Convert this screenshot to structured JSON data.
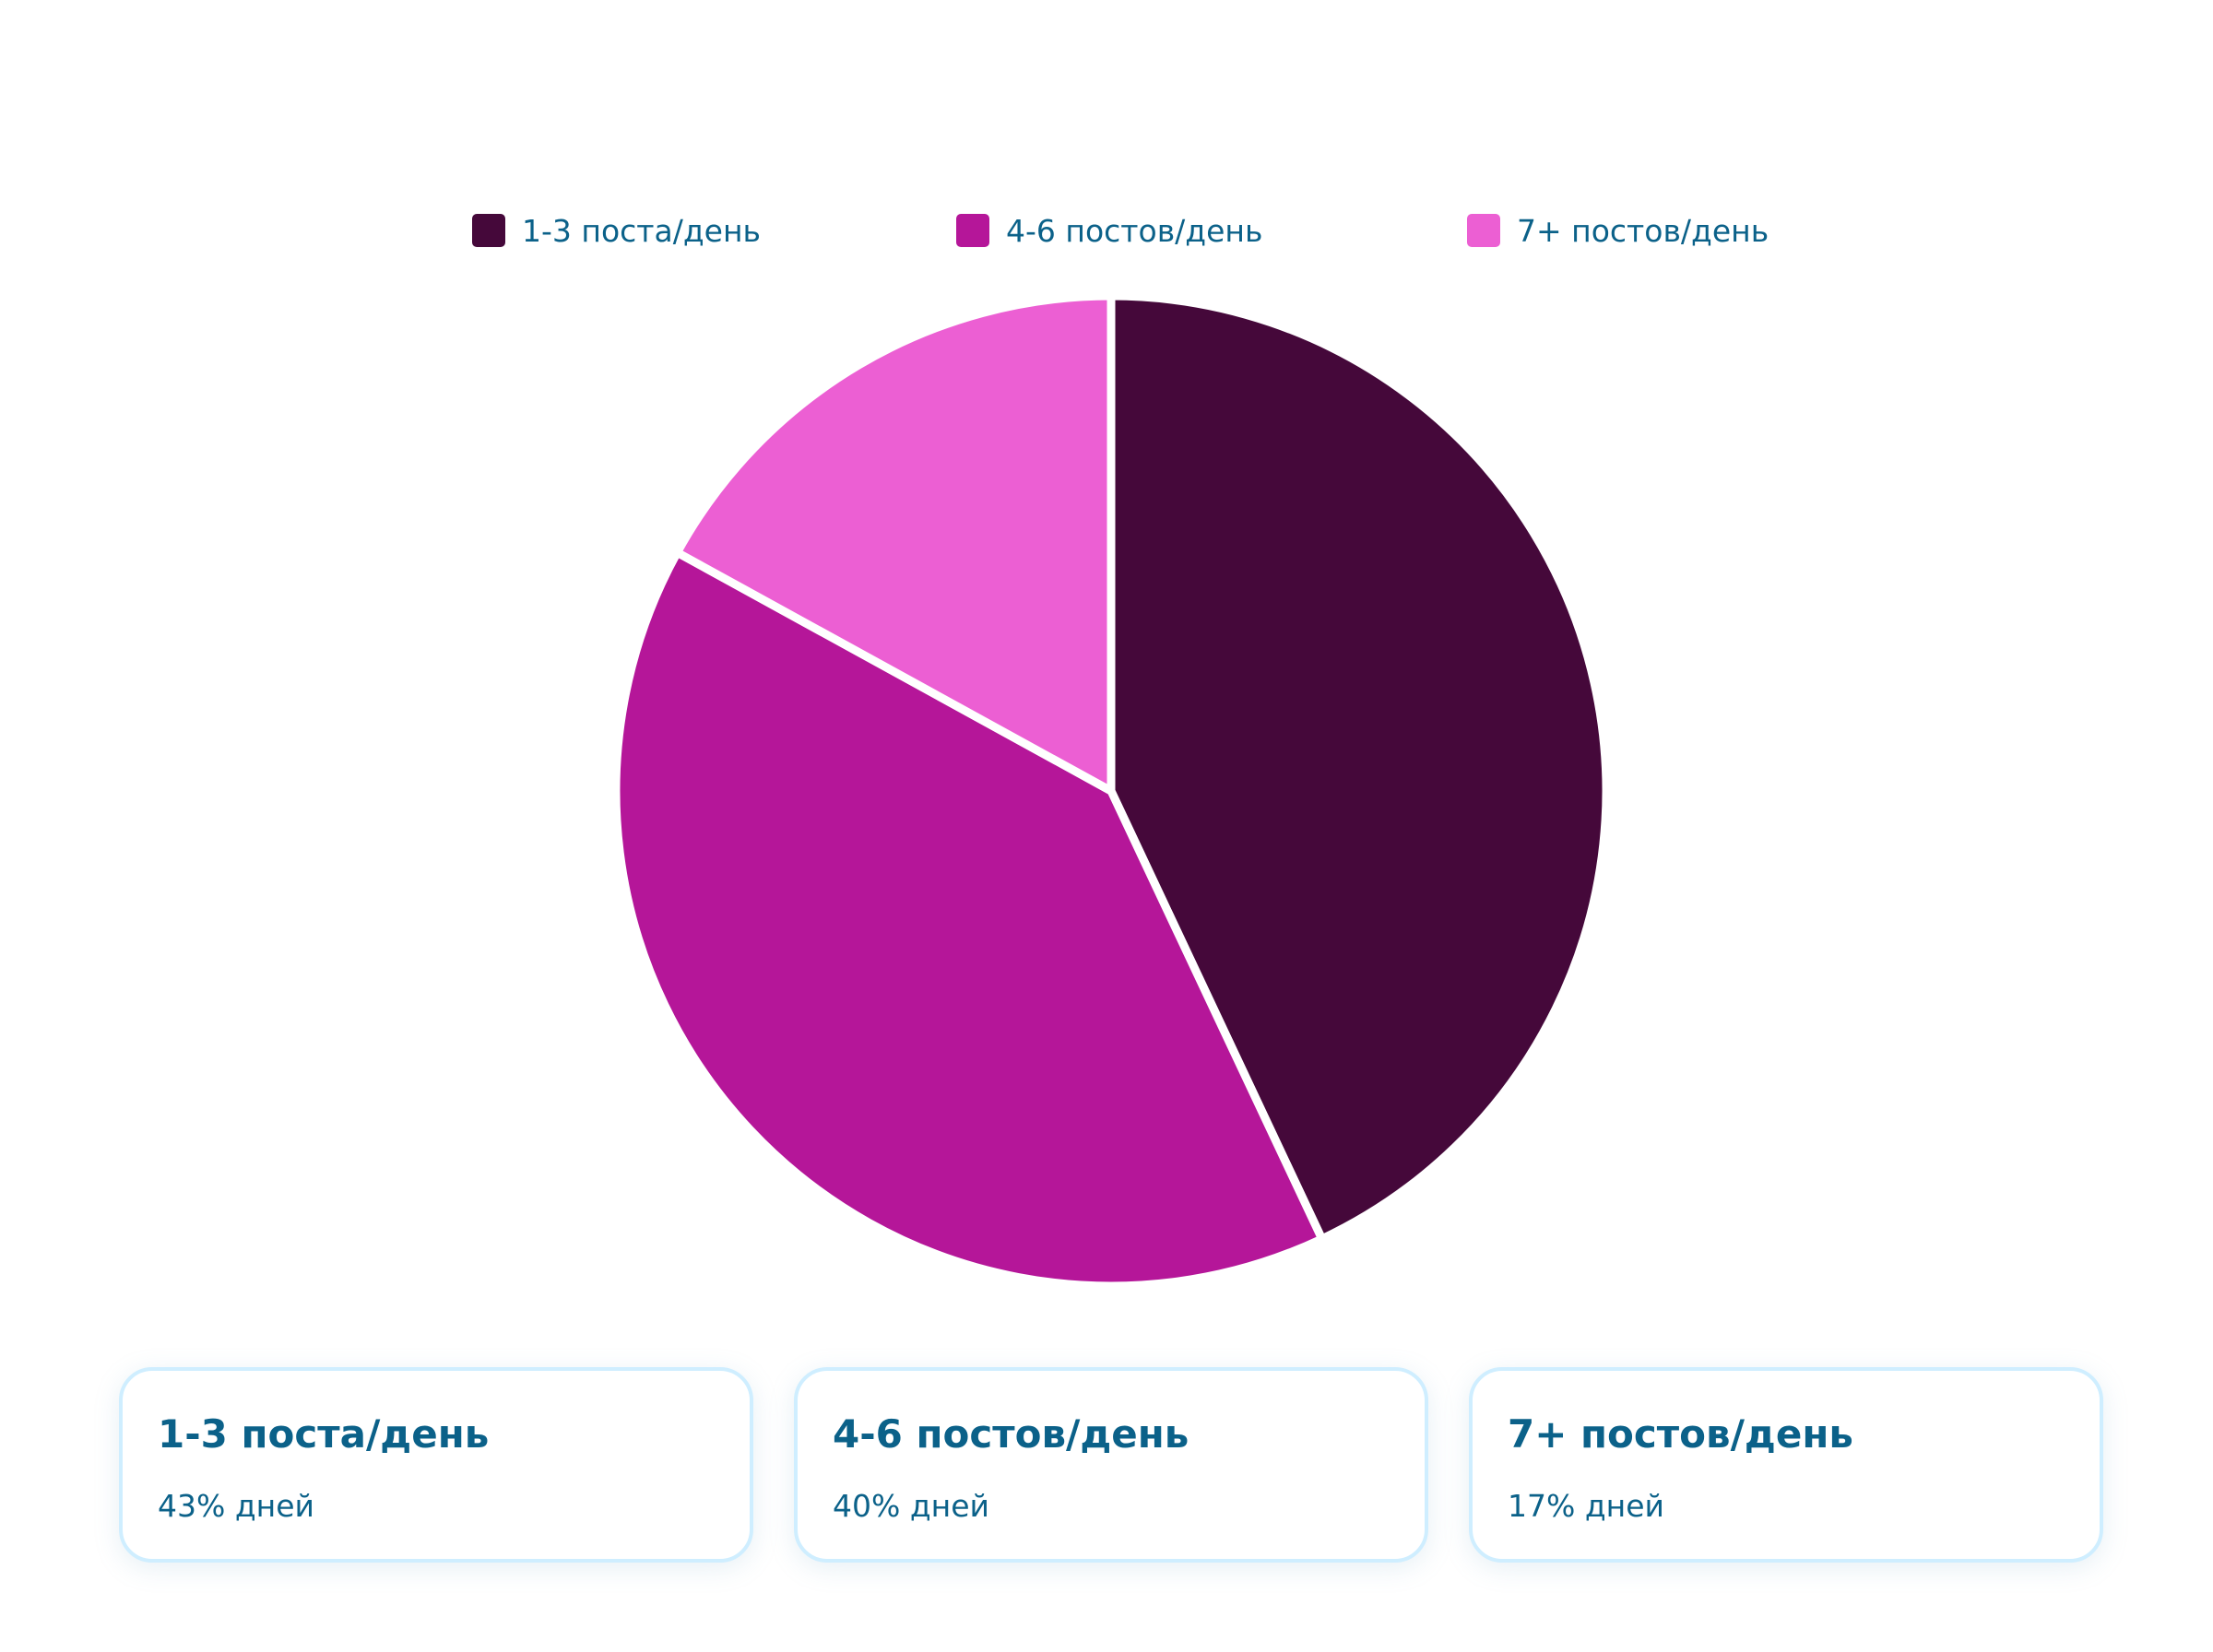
{
  "chart_data": {
    "type": "pie",
    "title": "",
    "categories": [
      "1-3 поста/день",
      "4-6 постов/день",
      "7+ постов/день"
    ],
    "values": [
      43,
      40,
      17
    ],
    "unit": "%",
    "colors": [
      "#45083a",
      "#b51699",
      "#ec5fd3"
    ],
    "legend_position": "top",
    "start_angle": "12 o'clock",
    "direction": "clockwise"
  },
  "legend": {
    "items": [
      {
        "label": "1-3 поста/день",
        "color": "#45083a"
      },
      {
        "label": "4-6 постов/день",
        "color": "#b51699"
      },
      {
        "label": "7+ постов/день",
        "color": "#ec5fd3"
      }
    ]
  },
  "cards": [
    {
      "title": "1-3 поста/день",
      "subtitle": "43% дней"
    },
    {
      "title": "4-6 постов/день",
      "subtitle": "40% дней"
    },
    {
      "title": "7+ постов/день",
      "subtitle": "17% дней"
    }
  ]
}
